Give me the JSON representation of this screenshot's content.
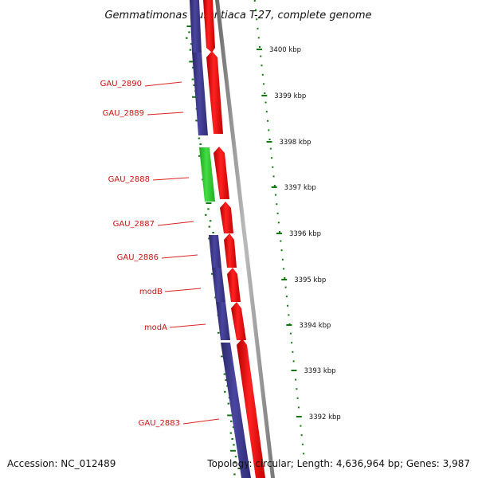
{
  "title": "Gemmatimonas aurantiaca T-27, complete genome",
  "accession_text": "Accession: NC_012489",
  "summary_text": "Topology: circular; Length: 4,636,964 bp; Genes: 3,987",
  "colors": {
    "reverse_cds": "#3d3a8c",
    "forward_cds": "#ee1111",
    "rna_gene": "#33cc33",
    "backbone": "#888888",
    "gc_skew": "#117711",
    "label_red": "#cc1111",
    "leader_line": "#dd2222"
  },
  "ticks": [
    {
      "label": "3400 kbp",
      "kbp": 3400
    },
    {
      "label": "3399 kbp",
      "kbp": 3399
    },
    {
      "label": "3398 kbp",
      "kbp": 3398
    },
    {
      "label": "3397 kbp",
      "kbp": 3397
    },
    {
      "label": "3396 kbp",
      "kbp": 3396
    },
    {
      "label": "3395 kbp",
      "kbp": 3395
    },
    {
      "label": "3394 kbp",
      "kbp": 3394
    },
    {
      "label": "3393 kbp",
      "kbp": 3393
    },
    {
      "label": "3392 kbp",
      "kbp": 3392
    }
  ],
  "gene_labels": [
    {
      "name": "GAU_2890"
    },
    {
      "name": "GAU_2889"
    },
    {
      "name": "GAU_2888"
    },
    {
      "name": "GAU_2887"
    },
    {
      "name": "GAU_2886"
    },
    {
      "name": "modB"
    },
    {
      "name": "modA"
    },
    {
      "name": "GAU_2883"
    }
  ]
}
